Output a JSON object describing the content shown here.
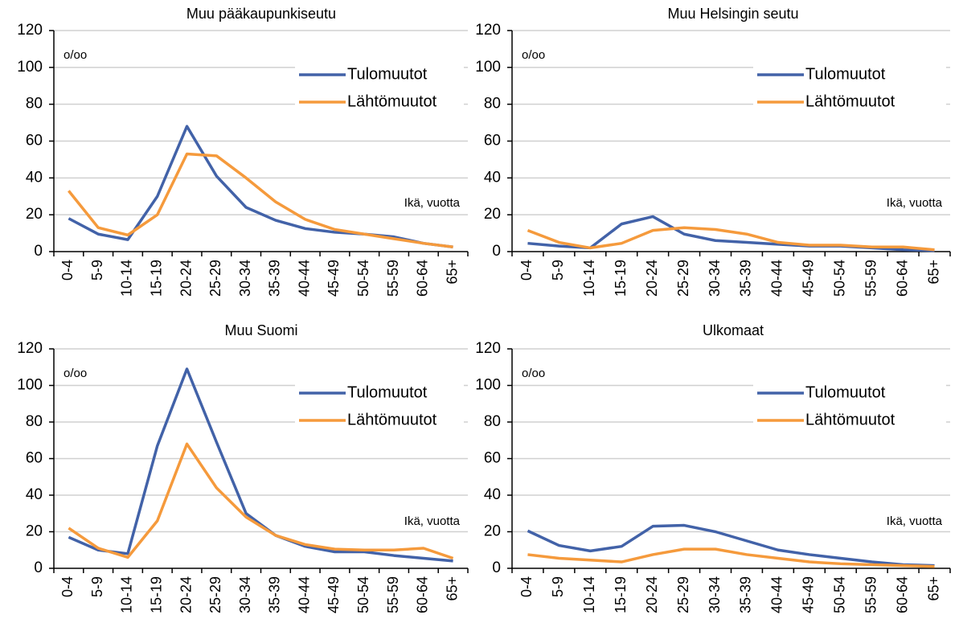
{
  "chart_data": [
    {
      "type": "line",
      "title": "Muu pääkaupunkiseutu",
      "categories": [
        "0-4",
        "5-9",
        "10-14",
        "15-19",
        "20-24",
        "25-29",
        "30-34",
        "35-39",
        "40-44",
        "45-49",
        "50-54",
        "55-59",
        "60-64",
        "65+"
      ],
      "series": [
        {
          "name": "Tulomuutot",
          "color": "#4262a8",
          "values": [
            18,
            9.5,
            6.5,
            30,
            68,
            41,
            24,
            17,
            12.5,
            10.5,
            9.5,
            8,
            4.5,
            2.5
          ]
        },
        {
          "name": "Lähtömuutot",
          "color": "#f59a3c",
          "values": [
            33,
            13,
            9,
            20,
            53,
            52,
            40,
            27,
            17.5,
            12,
            9.5,
            7,
            4.5,
            2.5
          ]
        }
      ],
      "ylim": [
        0,
        120
      ],
      "yticks": [
        0,
        20,
        40,
        60,
        80,
        100,
        120
      ],
      "grid": true,
      "annotations": [
        "o/oo",
        "Ikä, vuotta"
      ]
    },
    {
      "type": "line",
      "title": "Muu Helsingin seutu",
      "categories": [
        "0-4",
        "5-9",
        "10-14",
        "15-19",
        "20-24",
        "25-29",
        "30-34",
        "35-39",
        "40-44",
        "45-49",
        "50-54",
        "55-59",
        "60-64",
        "65+"
      ],
      "series": [
        {
          "name": "Tulomuutot",
          "color": "#4262a8",
          "values": [
            4.5,
            3,
            2,
            15,
            19,
            9.5,
            6,
            5,
            4,
            3,
            3,
            2,
            1,
            0.5
          ]
        },
        {
          "name": "Lähtömuutot",
          "color": "#f59a3c",
          "values": [
            11.5,
            5,
            2,
            4.5,
            11.5,
            13,
            12,
            9.5,
            5,
            3.5,
            3.5,
            2.5,
            2.5,
            1
          ]
        }
      ],
      "ylim": [
        0,
        120
      ],
      "yticks": [
        0,
        20,
        40,
        60,
        80,
        100,
        120
      ],
      "grid": true,
      "annotations": [
        "o/oo",
        "Ikä, vuotta"
      ]
    },
    {
      "type": "line",
      "title": "Muu Suomi",
      "categories": [
        "0-4",
        "5-9",
        "10-14",
        "15-19",
        "20-24",
        "25-29",
        "30-34",
        "35-39",
        "40-44",
        "45-49",
        "50-54",
        "55-59",
        "60-64",
        "65+"
      ],
      "series": [
        {
          "name": "Tulomuutot",
          "color": "#4262a8",
          "values": [
            17,
            10,
            8,
            67,
            109,
            69,
            30,
            18,
            12,
            9,
            9,
            7,
            5.5,
            4
          ]
        },
        {
          "name": "Lähtömuutot",
          "color": "#f59a3c",
          "values": [
            22,
            11,
            6,
            26,
            68,
            44,
            28,
            18,
            13,
            10.5,
            10,
            10,
            11,
            5.5
          ]
        }
      ],
      "ylim": [
        0,
        120
      ],
      "yticks": [
        0,
        20,
        40,
        60,
        80,
        100,
        120
      ],
      "grid": true,
      "annotations": [
        "o/oo",
        "Ikä, vuotta"
      ]
    },
    {
      "type": "line",
      "title": "Ulkomaat",
      "categories": [
        "0-4",
        "5-9",
        "10-14",
        "15-19",
        "20-24",
        "25-29",
        "30-34",
        "35-39",
        "40-44",
        "45-49",
        "50-54",
        "55-59",
        "60-64",
        "65+"
      ],
      "series": [
        {
          "name": "Tulomuutot",
          "color": "#4262a8",
          "values": [
            20.5,
            12.5,
            9.5,
            12,
            23,
            23.5,
            20,
            15,
            10,
            7.5,
            5.5,
            3.5,
            2,
            1.5
          ]
        },
        {
          "name": "Lähtömuutot",
          "color": "#f59a3c",
          "values": [
            7.5,
            5.5,
            4.5,
            3.5,
            7.5,
            10.5,
            10.5,
            7.5,
            5.5,
            3.5,
            2.5,
            2,
            1.5,
            1
          ]
        }
      ],
      "ylim": [
        0,
        120
      ],
      "yticks": [
        0,
        20,
        40,
        60,
        80,
        100,
        120
      ],
      "grid": true,
      "annotations": [
        "o/oo",
        "Ikä, vuotta"
      ]
    }
  ]
}
